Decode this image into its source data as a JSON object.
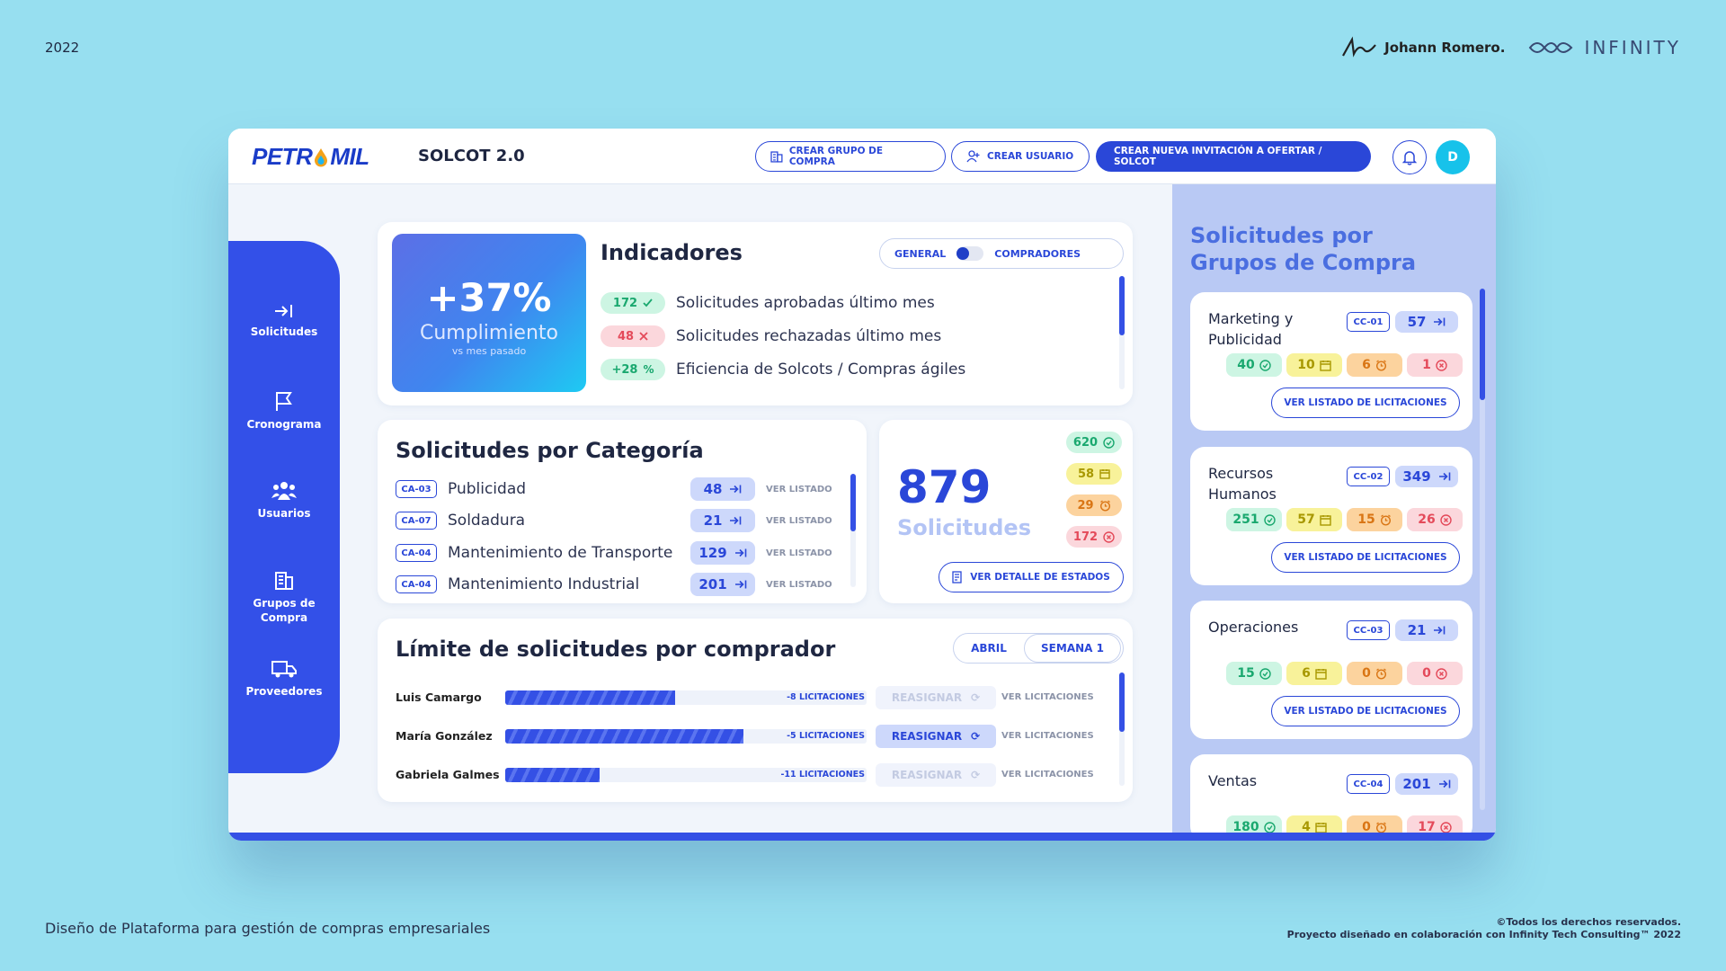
{
  "year": "2022",
  "credits": {
    "author": "Johann Romero.",
    "brand": "INFINITY"
  },
  "footer": {
    "left": "Diseño de Plataforma para gestión de compras empresariales",
    "right_line1": "©Todos los derechos reservados.",
    "right_line2": "Proyecto diseñado en colaboración con Infinity Tech Consulting™ 2022"
  },
  "header": {
    "logo_left": "PETR",
    "logo_right": "MIL",
    "app_title": "SOLCOT 2.0",
    "btn_grupo": "CREAR GRUPO DE COMPRA",
    "btn_usuario": "CREAR USUARIO",
    "btn_invitacion": "CREAR NUEVA INVITACIÓN A OFERTAR / SOLCOT",
    "avatar_initial": "D"
  },
  "sidebar": {
    "items": [
      {
        "label": "Solicitudes",
        "icon": "arrow-in-icon"
      },
      {
        "label": "Cronograma",
        "icon": "flag-icon"
      },
      {
        "label": "Usuarios",
        "icon": "users-icon"
      },
      {
        "label": "Grupos de Compra",
        "icon": "building-icon"
      },
      {
        "label": "Proveedores",
        "icon": "truck-icon"
      }
    ]
  },
  "indicadores": {
    "kpi_value": "+37%",
    "kpi_label": "Cumplimiento",
    "kpi_sub": "vs mes pasado",
    "title": "Indicadores",
    "toggle_left": "GENERAL",
    "toggle_right": "COMPRADORES",
    "rows": [
      {
        "value": "172",
        "icon": "check-icon",
        "text": "Solicitudes aprobadas último mes"
      },
      {
        "value": "48",
        "icon": "x-icon",
        "text": "Solicitudes rechazadas último mes"
      },
      {
        "value": "+28",
        "icon": "percent-icon",
        "text": "Eficiencia de Solcots / Compras ágiles"
      }
    ]
  },
  "categorias": {
    "title": "Solicitudes por Categoría",
    "ver_label": "VER LISTADO",
    "rows": [
      {
        "code": "CA-03",
        "name": "Publicidad",
        "value": "48"
      },
      {
        "code": "CA-07",
        "name": "Soldadura",
        "value": "21"
      },
      {
        "code": "CA-04",
        "name": "Mantenimiento de Transporte",
        "value": "129"
      },
      {
        "code": "CA-04",
        "name": "Mantenimiento Industrial",
        "value": "201"
      }
    ]
  },
  "total": {
    "value": "879",
    "label": "Solicitudes",
    "states": [
      "620",
      "58",
      "29",
      "172"
    ],
    "btn": "VER DETALLE DE ESTADOS"
  },
  "limite": {
    "title": "Límite de solicitudes por comprador",
    "tab_left": "ABRIL",
    "tab_right": "SEMANA 1",
    "reasignar": "REASIGNAR",
    "ver_lic": "VER LICITACIONES",
    "rows": [
      {
        "name": "Luis Camargo",
        "fill": 0.47,
        "remaining": "-8 LICITACIONES",
        "enabled": false
      },
      {
        "name": "María González",
        "fill": 0.66,
        "remaining": "-5 LICITACIONES",
        "enabled": true
      },
      {
        "name": "Gabriela Galmes",
        "fill": 0.26,
        "remaining": "-11 LICITACIONES",
        "enabled": false
      }
    ]
  },
  "grupos": {
    "title": "Solicitudes por Grupos de Compra",
    "ver_btn": "VER LISTADO DE LICITACIONES",
    "cards": [
      {
        "name": "Marketing y Publicidad",
        "code": "CC-01",
        "total": "57",
        "stats": [
          "40",
          "10",
          "6",
          "1"
        ]
      },
      {
        "name": "Recursos Humanos",
        "code": "CC-02",
        "total": "349",
        "stats": [
          "251",
          "57",
          "15",
          "26"
        ]
      },
      {
        "name": "Operaciones",
        "code": "CC-03",
        "total": "21",
        "stats": [
          "15",
          "6",
          "0",
          "0"
        ]
      },
      {
        "name": "Ventas",
        "code": "CC-04",
        "total": "201",
        "stats": [
          "180",
          "4",
          "0",
          "17"
        ]
      }
    ]
  },
  "colors": {
    "accent": "#3450E5",
    "green": "#1AB27A",
    "yellow": "#B8A700",
    "orange": "#E0851E",
    "red": "#E44A5A"
  }
}
